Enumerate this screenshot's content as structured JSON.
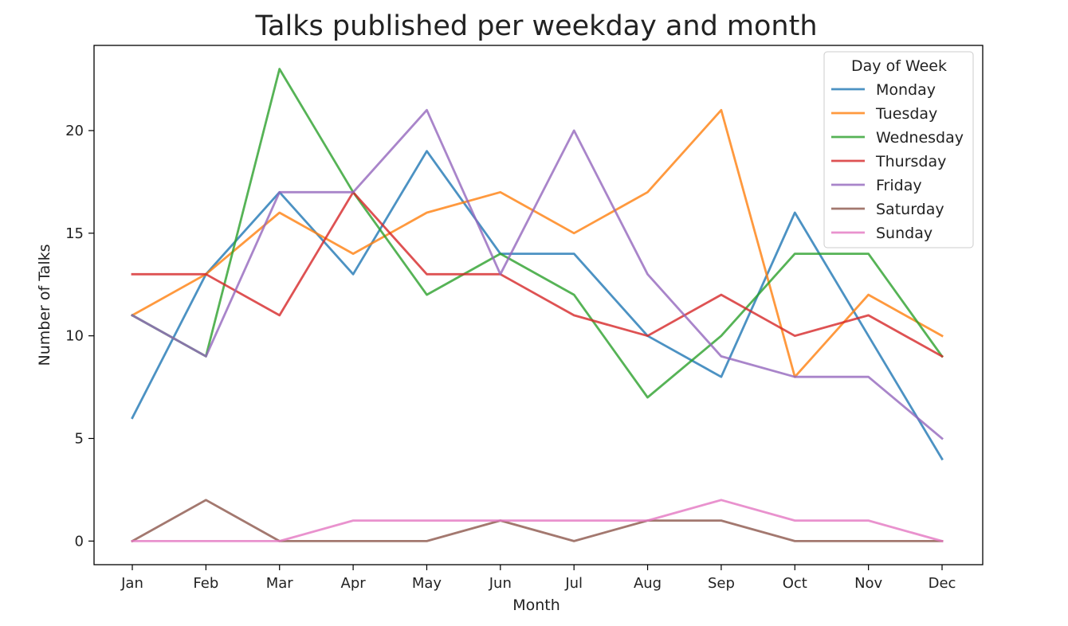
{
  "chart_data": {
    "type": "line",
    "title": "Talks published per weekday and month",
    "xlabel": "Month",
    "ylabel": "Number of Talks",
    "categories": [
      "Jan",
      "Feb",
      "Mar",
      "Apr",
      "May",
      "Jun",
      "Jul",
      "Aug",
      "Sep",
      "Oct",
      "Nov",
      "Dec"
    ],
    "ylim": [
      -1.15,
      24.15
    ],
    "yticks": [
      0,
      5,
      10,
      15,
      20
    ],
    "grid": false,
    "legend": {
      "title": "Day of Week",
      "placement": "top-right"
    },
    "series": [
      {
        "name": "Monday",
        "color": "#1f77b4",
        "values": [
          6,
          13,
          17,
          13,
          19,
          14,
          14,
          10,
          8,
          16,
          10,
          4
        ]
      },
      {
        "name": "Tuesday",
        "color": "#ff7f0e",
        "values": [
          11,
          13,
          16,
          14,
          16,
          17,
          15,
          17,
          21,
          8,
          12,
          10
        ]
      },
      {
        "name": "Wednesday",
        "color": "#2ca02c",
        "values": [
          11,
          9,
          23,
          17,
          12,
          14,
          12,
          7,
          10,
          14,
          14,
          9
        ]
      },
      {
        "name": "Thursday",
        "color": "#d62728",
        "values": [
          13,
          13,
          11,
          17,
          13,
          13,
          11,
          10,
          12,
          10,
          11,
          9
        ]
      },
      {
        "name": "Friday",
        "color": "#9467bd",
        "values": [
          11,
          9,
          17,
          17,
          21,
          13,
          20,
          13,
          9,
          8,
          8,
          5
        ]
      },
      {
        "name": "Saturday",
        "color": "#8c564b",
        "values": [
          0,
          2,
          0,
          0,
          0,
          1,
          0,
          1,
          1,
          0,
          0,
          0
        ]
      },
      {
        "name": "Sunday",
        "color": "#e377c2",
        "values": [
          0,
          0,
          0,
          1,
          1,
          1,
          1,
          1,
          2,
          1,
          1,
          0
        ]
      }
    ]
  }
}
